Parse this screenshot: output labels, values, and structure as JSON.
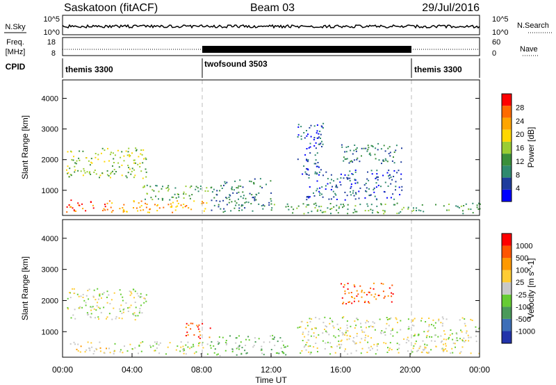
{
  "header": {
    "station": "Saskatoon (fitACF)",
    "beam": "Beam 03",
    "date": "29/Jul/2016"
  },
  "noise_panel": {
    "left_label": "N.Sky",
    "right_label": "N.Search",
    "left_ticks": [
      "10^5",
      "10^0"
    ],
    "right_ticks": [
      "10^5",
      "10^0"
    ]
  },
  "freq_panel": {
    "left_label_top": "Freq.",
    "left_label_bottom": "[MHz]",
    "right_label": "Nave",
    "left_ticks": [
      "18",
      "8"
    ],
    "right_ticks": [
      "60",
      "0"
    ]
  },
  "cpid_panel": {
    "label": "CPID",
    "segments": [
      {
        "name": "themis 3300",
        "start_hour": 0,
        "end_hour": 8
      },
      {
        "name": "twofsound 3503",
        "start_hour": 8,
        "end_hour": 20
      },
      {
        "name": "themis 3300",
        "start_hour": 20,
        "end_hour": 24
      }
    ]
  },
  "colors": {
    "power": [
      "#0000ff",
      "#1e3c9c",
      "#2f8a6e",
      "#3a8f3a",
      "#9acd32",
      "#ffd700",
      "#ffa500",
      "#ff6a00",
      "#ff0000"
    ],
    "velocity": [
      "#2233aa",
      "#3d6fb8",
      "#4a9a5a",
      "#66cc33",
      "#c8c8c8",
      "#ffcc33",
      "#ff9900",
      "#ff5500",
      "#ff0000"
    ]
  },
  "chart_data": [
    {
      "type": "heatmap",
      "name": "Power",
      "ylabel": "Slant Range [km]",
      "colorbar_label": "Power [dB]",
      "colorbar_ticks": [
        "28",
        "24",
        "20",
        "16",
        "12",
        "8",
        "4"
      ],
      "ylim": [
        180,
        4600
      ],
      "yticks": [
        1000,
        2000,
        3000,
        4000
      ],
      "xlim": [
        0,
        24
      ],
      "scatter_regions": [
        {
          "t0": 0.2,
          "t1": 4.8,
          "r0": 1400,
          "r1": 2400,
          "level": 4
        },
        {
          "t0": 0.2,
          "t1": 2.5,
          "r0": 300,
          "r1": 700,
          "level": 7
        },
        {
          "t0": 2.5,
          "t1": 8.5,
          "r0": 300,
          "r1": 700,
          "level": 6
        },
        {
          "t0": 4.5,
          "t1": 8.5,
          "r0": 700,
          "r1": 1200,
          "level": 3
        },
        {
          "t0": 8.5,
          "t1": 12,
          "r0": 300,
          "r1": 1400,
          "level": 2
        },
        {
          "t0": 13.5,
          "t1": 15,
          "r0": 1500,
          "r1": 3200,
          "level": 1
        },
        {
          "t0": 14,
          "t1": 19.5,
          "r0": 700,
          "r1": 1700,
          "level": 1
        },
        {
          "t0": 16,
          "t1": 19.5,
          "r0": 1900,
          "r1": 2600,
          "level": 2
        },
        {
          "t0": 12,
          "t1": 24,
          "r0": 250,
          "r1": 600,
          "level": 3
        }
      ]
    },
    {
      "type": "heatmap",
      "name": "Velocity",
      "ylabel": "Slant Range [km]",
      "xlabel": "Time UT",
      "colorbar_label": "Velocity [m s^-1]",
      "colorbar_ticks": [
        "1000",
        "500",
        "100",
        "25",
        "-25",
        "-100",
        "-500",
        "-1000"
      ],
      "ylim": [
        180,
        4600
      ],
      "yticks": [
        1000,
        2000,
        3000,
        4000
      ],
      "xlim": [
        0,
        24
      ],
      "xticks": [
        "00:00",
        "04:00",
        "08:00",
        "12:00",
        "16:00",
        "20:00",
        "00:00"
      ],
      "scatter_regions": [
        {
          "t0": 0.2,
          "t1": 4.8,
          "r0": 1400,
          "r1": 2400,
          "level": 4
        },
        {
          "t0": 0.2,
          "t1": 2.5,
          "r0": 300,
          "r1": 700,
          "level": 5
        },
        {
          "t0": 2.5,
          "t1": 8.5,
          "r0": 300,
          "r1": 700,
          "level": 4
        },
        {
          "t0": 7,
          "t1": 8.5,
          "r0": 800,
          "r1": 1300,
          "level": 7
        },
        {
          "t0": 8.5,
          "t1": 13,
          "r0": 250,
          "r1": 900,
          "level": 3
        },
        {
          "t0": 16,
          "t1": 19,
          "r0": 1900,
          "r1": 2600,
          "level": 7
        },
        {
          "t0": 13.5,
          "t1": 24,
          "r0": 300,
          "r1": 1500,
          "level": 4
        }
      ]
    }
  ]
}
